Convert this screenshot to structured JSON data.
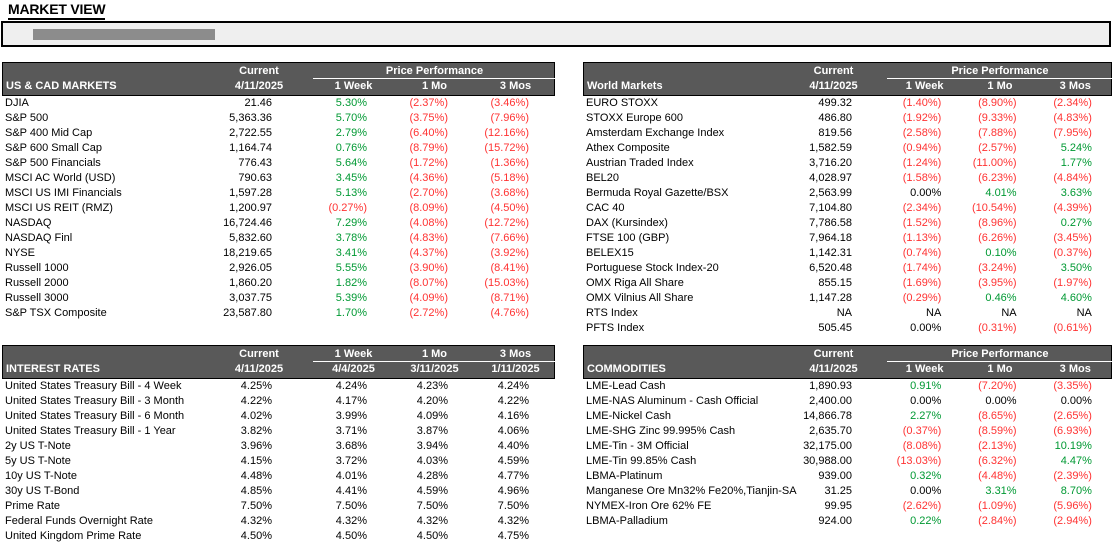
{
  "page": {
    "title": "MARKET VIEW"
  },
  "colors": {
    "positive": "#009933",
    "negative": "#ff3333",
    "neutral": "#000000",
    "header_bg": "#595959",
    "header_text": "#ffffff",
    "info_box_bg": "#efefef",
    "redacted_bar": "#8c8c8c"
  },
  "tables": [
    {
      "title": "US & CAD MARKETS",
      "current_label": "Current",
      "current_date": "4/11/2025",
      "perf_label": "Price Performance",
      "col_headers": [
        "1 Week",
        "1 Mo",
        "3 Mos"
      ],
      "colorize": true,
      "rows": [
        {
          "label": "DJIA",
          "current": "21.46",
          "values": [
            "5.30%",
            "(2.37%)",
            "(3.46%)"
          ]
        },
        {
          "label": "S&P 500",
          "current": "5,363.36",
          "values": [
            "5.70%",
            "(3.75%)",
            "(7.96%)"
          ]
        },
        {
          "label": "S&P 400 Mid Cap",
          "current": "2,722.55",
          "values": [
            "2.79%",
            "(6.40%)",
            "(12.16%)"
          ]
        },
        {
          "label": "S&P 600 Small Cap",
          "current": "1,164.74",
          "values": [
            "0.76%",
            "(8.79%)",
            "(15.72%)"
          ]
        },
        {
          "label": "S&P 500 Financials",
          "current": "776.43",
          "values": [
            "5.64%",
            "(1.72%)",
            "(1.36%)"
          ]
        },
        {
          "label": "MSCI AC World (USD)",
          "current": "790.63",
          "values": [
            "3.45%",
            "(4.36%)",
            "(5.18%)"
          ]
        },
        {
          "label": "MSCI US IMI Financials",
          "current": "1,597.28",
          "values": [
            "5.13%",
            "(2.70%)",
            "(3.68%)"
          ]
        },
        {
          "label": "MSCI US REIT (RMZ)",
          "current": "1,200.97",
          "values": [
            "(0.27%)",
            "(8.09%)",
            "(4.50%)"
          ]
        },
        {
          "label": "NASDAQ",
          "current": "16,724.46",
          "values": [
            "7.29%",
            "(4.08%)",
            "(12.72%)"
          ]
        },
        {
          "label": "NASDAQ Finl",
          "current": "5,832.60",
          "values": [
            "3.78%",
            "(4.83%)",
            "(7.66%)"
          ]
        },
        {
          "label": "NYSE",
          "current": "18,219.65",
          "values": [
            "3.41%",
            "(4.37%)",
            "(3.92%)"
          ]
        },
        {
          "label": "Russell 1000",
          "current": "2,926.05",
          "values": [
            "5.55%",
            "(3.90%)",
            "(8.41%)"
          ]
        },
        {
          "label": "Russell 2000",
          "current": "1,860.20",
          "values": [
            "1.82%",
            "(8.07%)",
            "(15.03%)"
          ]
        },
        {
          "label": "Russell 3000",
          "current": "3,037.75",
          "values": [
            "5.39%",
            "(4.09%)",
            "(8.71%)"
          ]
        },
        {
          "label": "S&P TSX Composite",
          "current": "23,587.80",
          "values": [
            "1.70%",
            "(2.72%)",
            "(4.76%)"
          ]
        }
      ]
    },
    {
      "title": "World Markets",
      "current_label": "Current",
      "current_date": "4/11/2025",
      "perf_label": "Price Performance",
      "col_headers": [
        "1 Week",
        "1 Mo",
        "3 Mos"
      ],
      "colorize": true,
      "rows": [
        {
          "label": "EURO STOXX",
          "current": "499.32",
          "values": [
            "(1.40%)",
            "(8.90%)",
            "(2.34%)"
          ]
        },
        {
          "label": "STOXX Europe 600",
          "current": "486.80",
          "values": [
            "(1.92%)",
            "(9.33%)",
            "(4.83%)"
          ]
        },
        {
          "label": "Amsterdam Exchange Index",
          "current": "819.56",
          "values": [
            "(2.58%)",
            "(7.88%)",
            "(7.95%)"
          ]
        },
        {
          "label": "Athex Composite",
          "current": "1,582.59",
          "values": [
            "(0.94%)",
            "(2.57%)",
            "5.24%"
          ]
        },
        {
          "label": "Austrian Traded Index",
          "current": "3,716.20",
          "values": [
            "(1.24%)",
            "(11.00%)",
            "1.77%"
          ]
        },
        {
          "label": "BEL20",
          "current": "4,028.97",
          "values": [
            "(1.58%)",
            "(6.23%)",
            "(4.84%)"
          ]
        },
        {
          "label": "Bermuda Royal Gazette/BSX",
          "current": "2,563.99",
          "values": [
            "0.00%",
            "4.01%",
            "3.63%"
          ]
        },
        {
          "label": "CAC 40",
          "current": "7,104.80",
          "values": [
            "(2.34%)",
            "(10.54%)",
            "(4.39%)"
          ]
        },
        {
          "label": "DAX (Kursindex)",
          "current": "7,786.58",
          "values": [
            "(1.52%)",
            "(8.96%)",
            "0.27%"
          ]
        },
        {
          "label": "FTSE 100 (GBP)",
          "current": "7,964.18",
          "values": [
            "(1.13%)",
            "(6.26%)",
            "(3.45%)"
          ]
        },
        {
          "label": "BELEX15",
          "current": "1,142.31",
          "values": [
            "(0.74%)",
            "0.10%",
            "(0.37%)"
          ]
        },
        {
          "label": "Portuguese Stock Index-20",
          "current": "6,520.48",
          "values": [
            "(1.74%)",
            "(3.24%)",
            "3.50%"
          ]
        },
        {
          "label": "OMX Riga All Share",
          "current": "855.15",
          "values": [
            "(1.69%)",
            "(3.95%)",
            "(1.97%)"
          ]
        },
        {
          "label": "OMX Vilnius All Share",
          "current": "1,147.28",
          "values": [
            "(0.29%)",
            "0.46%",
            "4.60%"
          ]
        },
        {
          "label": "RTS Index",
          "current": "NA",
          "values": [
            "NA",
            "NA",
            "NA"
          ]
        },
        {
          "label": "PFTS Index",
          "current": "505.45",
          "values": [
            "0.00%",
            "(0.31%)",
            "(0.61%)"
          ]
        }
      ]
    },
    {
      "title": "INTEREST RATES",
      "current_label": "Current",
      "current_date": "4/11/2025",
      "col_headers": [
        "1 Week",
        "1 Mo",
        "3 Mos"
      ],
      "col_dates": [
        "4/4/2025",
        "3/11/2025",
        "1/11/2025"
      ],
      "colorize": false,
      "rows": [
        {
          "label": "United States Treasury Bill - 4 Week",
          "current": "4.25%",
          "values": [
            "4.24%",
            "4.23%",
            "4.24%"
          ]
        },
        {
          "label": "United States Treasury Bill - 3 Month",
          "current": "4.22%",
          "values": [
            "4.17%",
            "4.20%",
            "4.22%"
          ]
        },
        {
          "label": "United States Treasury Bill - 6 Month",
          "current": "4.02%",
          "values": [
            "3.99%",
            "4.09%",
            "4.16%"
          ]
        },
        {
          "label": "United States Treasury Bill - 1 Year",
          "current": "3.82%",
          "values": [
            "3.71%",
            "3.87%",
            "4.06%"
          ]
        },
        {
          "label": "2y US T-Note",
          "current": "3.96%",
          "values": [
            "3.68%",
            "3.94%",
            "4.40%"
          ]
        },
        {
          "label": "5y US T-Note",
          "current": "4.15%",
          "values": [
            "3.72%",
            "4.03%",
            "4.59%"
          ]
        },
        {
          "label": "10y US T-Note",
          "current": "4.48%",
          "values": [
            "4.01%",
            "4.28%",
            "4.77%"
          ]
        },
        {
          "label": "30y US T-Bond",
          "current": "4.85%",
          "values": [
            "4.41%",
            "4.59%",
            "4.96%"
          ]
        },
        {
          "label": "Prime Rate",
          "current": "7.50%",
          "values": [
            "7.50%",
            "7.50%",
            "7.50%"
          ]
        },
        {
          "label": "Federal Funds Overnight Rate",
          "current": "4.32%",
          "values": [
            "4.32%",
            "4.32%",
            "4.32%"
          ]
        },
        {
          "label": "United Kingdom Prime Rate",
          "current": "4.50%",
          "values": [
            "4.50%",
            "4.50%",
            "4.75%"
          ]
        }
      ]
    },
    {
      "title": "COMMODITIES",
      "current_label": "Current",
      "current_date": "4/11/2025",
      "perf_label": "Price Performance",
      "col_headers": [
        "1 Week",
        "1 Mo",
        "3 Mos"
      ],
      "colorize": true,
      "rows": [
        {
          "label": "LME-Lead Cash",
          "current": "1,890.93",
          "values": [
            "0.91%",
            "(7.20%)",
            "(3.35%)"
          ]
        },
        {
          "label": "LME-NAS Aluminum - Cash Official",
          "current": "2,400.00",
          "values": [
            "0.00%",
            "0.00%",
            "0.00%"
          ]
        },
        {
          "label": "LME-Nickel Cash",
          "current": "14,866.78",
          "values": [
            "2.27%",
            "(8.65%)",
            "(2.65%)"
          ]
        },
        {
          "label": "LME-SHG Zinc 99.995% Cash",
          "current": "2,635.70",
          "values": [
            "(0.37%)",
            "(8.59%)",
            "(6.93%)"
          ]
        },
        {
          "label": "LME-Tin - 3M Official",
          "current": "32,175.00",
          "values": [
            "(8.08%)",
            "(2.13%)",
            "10.19%"
          ]
        },
        {
          "label": "LME-Tin 99.85% Cash",
          "current": "30,988.00",
          "values": [
            "(13.03%)",
            "(6.32%)",
            "4.47%"
          ]
        },
        {
          "label": "LBMA-Platinum",
          "current": "939.00",
          "values": [
            "0.32%",
            "(4.48%)",
            "(2.39%)"
          ]
        },
        {
          "label": "Manganese Ore Mn32% Fe20%,Tianjin-SA",
          "current": "31.25",
          "values": [
            "0.00%",
            "3.31%",
            "8.70%"
          ]
        },
        {
          "label": "NYMEX-Iron Ore 62% FE",
          "current": "99.95",
          "values": [
            "(2.62%)",
            "(1.09%)",
            "(5.96%)"
          ]
        },
        {
          "label": "LBMA-Palladium",
          "current": "924.00",
          "values": [
            "0.22%",
            "(2.84%)",
            "(2.94%)"
          ]
        }
      ]
    }
  ]
}
